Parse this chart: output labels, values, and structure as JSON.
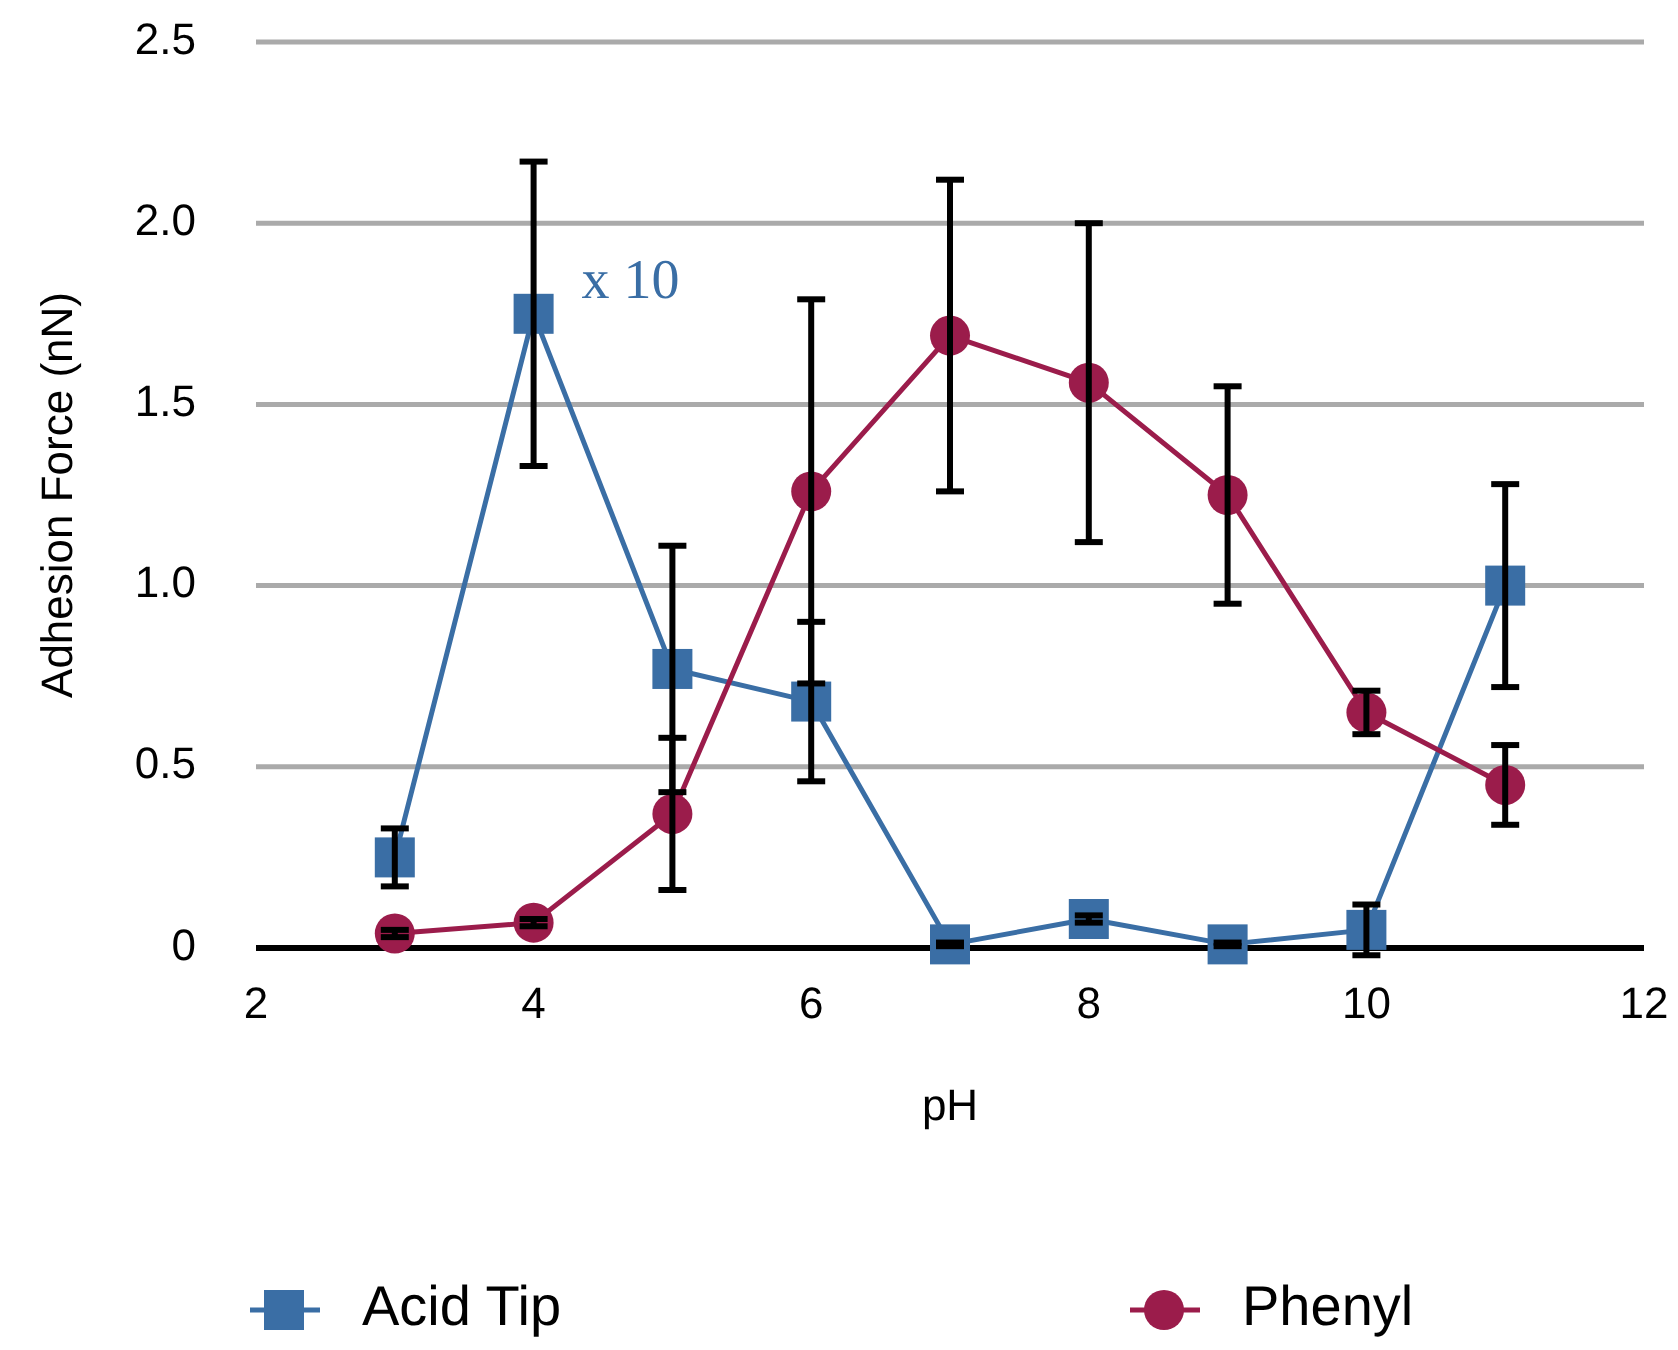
{
  "chart_data": {
    "type": "line",
    "xlabel": "pH",
    "ylabel": "Adhesion Force (nN)",
    "x": [
      3,
      4,
      5,
      6,
      7,
      8,
      9,
      10,
      11
    ],
    "xlim": [
      2,
      12
    ],
    "xticks": [
      2,
      4,
      6,
      8,
      10,
      12
    ],
    "ylim": [
      0,
      2.5
    ],
    "yticks": [
      {
        "value": 0,
        "label": "0"
      },
      {
        "value": 0.5,
        "label": "0.5"
      },
      {
        "value": 1,
        "label": "1.0"
      },
      {
        "value": 1.5,
        "label": "1.5"
      },
      {
        "value": 2,
        "label": "2.0"
      },
      {
        "value": 2.5,
        "label": "2.5"
      }
    ],
    "grid": "y",
    "legend": "bottom",
    "series": [
      {
        "name": "Acid Tip",
        "color": "#3a6ea5",
        "marker": "square",
        "values": [
          0.25,
          1.75,
          0.77,
          0.68,
          0.01,
          0.08,
          0.01,
          0.05,
          1.0
        ],
        "errors": [
          0.08,
          0.42,
          0.34,
          0.22,
          0.005,
          0.01,
          0.005,
          0.07,
          0.28
        ]
      },
      {
        "name": "Phenyl",
        "color": "#9b1c4b",
        "marker": "circle",
        "values": [
          0.04,
          0.07,
          0.37,
          1.26,
          1.69,
          1.56,
          1.25,
          0.65,
          0.45
        ],
        "errors": [
          0.01,
          0.01,
          0.21,
          0.53,
          0.43,
          0.44,
          0.3,
          0.06,
          0.11
        ]
      }
    ],
    "annotations": [
      {
        "text": "x 10",
        "x": 4,
        "y": 1.75
      }
    ]
  }
}
